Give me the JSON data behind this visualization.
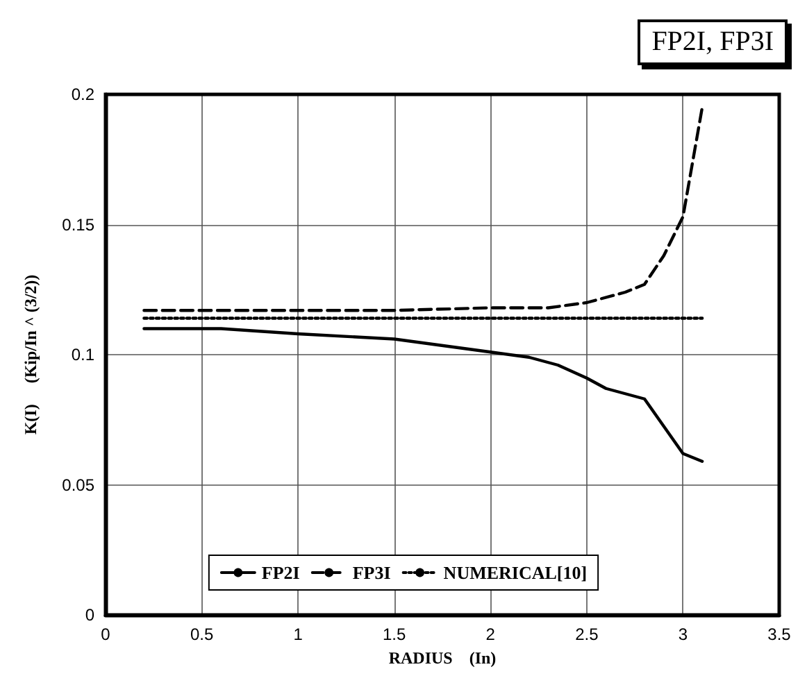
{
  "chart_data": {
    "type": "line",
    "title": "FP2I, FP3I",
    "xlabel": "RADIUS    (In)",
    "ylabel": "K(I)     (Kip/In ^ (3/2))",
    "xlim": [
      0,
      3.5
    ],
    "xticks": [
      0,
      0.5,
      1,
      1.5,
      2,
      2.5,
      3,
      3.5
    ],
    "ylim": [
      0,
      0.2
    ],
    "yticks": [
      0,
      0.05,
      0.1,
      0.15,
      0.2
    ],
    "grid": true,
    "legend": "bottom",
    "marker": "none",
    "series": [
      {
        "name": "FP2I",
        "color": "#000000",
        "line_style": "solid",
        "x": [
          0.2,
          0.6,
          1.0,
          1.5,
          2.0,
          2.2,
          2.35,
          2.5,
          2.6,
          2.8,
          3.0,
          3.1
        ],
        "values": [
          0.11,
          0.11,
          0.108,
          0.106,
          0.101,
          0.099,
          0.096,
          0.091,
          0.087,
          0.083,
          0.062,
          0.059
        ]
      },
      {
        "name": "FP3I",
        "color": "#000000",
        "line_style": "dashed",
        "x": [
          0.2,
          1.0,
          1.5,
          2.0,
          2.3,
          2.5,
          2.7,
          2.8,
          2.9,
          3.0,
          3.1
        ],
        "values": [
          0.117,
          0.117,
          0.117,
          0.118,
          0.118,
          0.12,
          0.124,
          0.127,
          0.138,
          0.153,
          0.195
        ]
      },
      {
        "name": "NUMERICAL[10]",
        "color": "#000000",
        "line_style": "dotted",
        "x": [
          0.2,
          3.1
        ],
        "values": [
          0.114,
          0.114
        ]
      }
    ]
  }
}
